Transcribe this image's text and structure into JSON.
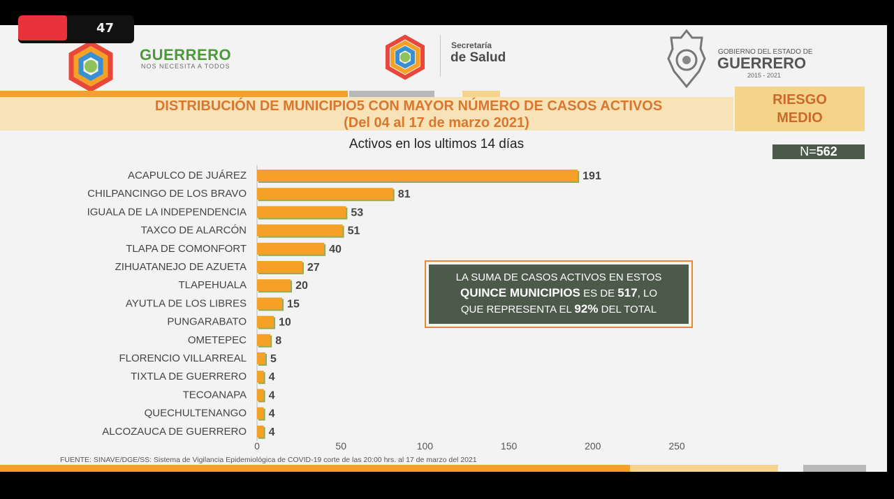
{
  "header": {
    "brand": {
      "name": "GUERRERO",
      "tagline": "NOS NECESITA A TODOS"
    },
    "secretaria": {
      "label": "Secretaría",
      "name": "de Salud"
    },
    "gobierno": {
      "label": "GOBIERNO DEL ESTADO DE",
      "name": "GUERRERO",
      "years": "2015 - 2021"
    },
    "overlay_count": "47"
  },
  "title": {
    "line1": "DISTRIBUCIÓN DE MUNICIPIO5 CON MAYOR NÚMERO DE  CASOS ACTIVOS",
    "line2": "(Del 04 al 17 de marzo 2021)"
  },
  "risk": {
    "line1": "RIESGO",
    "line2": "MEDIO"
  },
  "n_label": "N=",
  "n_value": "562",
  "note": {
    "line1": "LA SUMA DE CASOS ACTIVOS EN ESTOS",
    "line2a": "QUINCE MUNICIPIOS",
    "line2b": " ES DE ",
    "line2c": "517",
    "line2d": ", LO",
    "line3a": "QUE REPRESENTA EL ",
    "line3b": "92%",
    "line3c": " DEL TOTAL"
  },
  "source": "FUENTE: SINAVE/DGE/SS: Sistema de Vigilancia Epidemiológica de COVID-19 corte de las 20:00 hrs. al 17 de marzo del 2021",
  "colors": {
    "bar": "#f4a125",
    "bar_shadow": "#8fae5a",
    "title": "#d9772e",
    "panel": "#4c5a4a",
    "brand_green": "#4a9a3a"
  },
  "chart_data": {
    "type": "bar",
    "orientation": "horizontal",
    "title": "Activos en los ultimos 14 días",
    "categories": [
      "ACAPULCO DE JUÁREZ",
      "CHILPANCINGO DE LOS BRAVO",
      "IGUALA DE LA INDEPENDENCIA",
      "TAXCO DE ALARCÓN",
      "TLAPA DE COMONFORT",
      "ZIHUATANEJO DE AZUETA",
      "TLAPEHUALA",
      "AYUTLA DE LOS LIBRES",
      "PUNGARABATO",
      "OMETEPEC",
      "FLORENCIO VILLARREAL",
      "TIXTLA DE GUERRERO",
      "TECOANAPA",
      "QUECHULTENANGO",
      "ALCOZAUCA DE GUERRERO"
    ],
    "values": [
      191,
      81,
      53,
      51,
      40,
      27,
      20,
      15,
      10,
      8,
      5,
      4,
      4,
      4,
      4
    ],
    "xlim": [
      0,
      250
    ],
    "xticks": [
      0,
      50,
      100,
      150,
      200,
      250
    ],
    "grid": false,
    "data_labels": true
  }
}
